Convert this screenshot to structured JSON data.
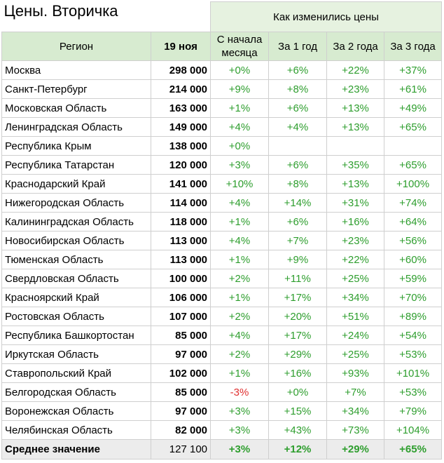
{
  "title": "Цены. Вторичка",
  "group_header": "Как изменились цены",
  "columns": {
    "region": "Регион",
    "date": "19 ноя",
    "month": "С начала месяца",
    "year1": "За 1 год",
    "year2": "За 2 года",
    "year3": "За 3 года"
  },
  "rows": [
    {
      "region": "Москва",
      "price": "298 000",
      "month": "+0%",
      "year1": "+6%",
      "year2": "+22%",
      "year3": "+37%"
    },
    {
      "region": "Санкт-Петербург",
      "price": "214 000",
      "month": "+9%",
      "year1": "+8%",
      "year2": "+23%",
      "year3": "+61%"
    },
    {
      "region": "Московская Область",
      "price": "163 000",
      "month": "+1%",
      "year1": "+6%",
      "year2": "+13%",
      "year3": "+49%"
    },
    {
      "region": "Ленинградская Область",
      "price": "149 000",
      "month": "+4%",
      "year1": "+4%",
      "year2": "+13%",
      "year3": "+65%"
    },
    {
      "region": "Республика Крым",
      "price": "138 000",
      "month": "+0%",
      "year1": "",
      "year2": "",
      "year3": ""
    },
    {
      "region": "Республика Татарстан",
      "price": "120 000",
      "month": "+3%",
      "year1": "+6%",
      "year2": "+35%",
      "year3": "+65%"
    },
    {
      "region": "Краснодарский Край",
      "price": "141 000",
      "month": "+10%",
      "year1": "+8%",
      "year2": "+13%",
      "year3": "+100%"
    },
    {
      "region": "Нижегородская Область",
      "price": "114 000",
      "month": "+4%",
      "year1": "+14%",
      "year2": "+31%",
      "year3": "+74%"
    },
    {
      "region": "Калининградская Область",
      "price": "118 000",
      "month": "+1%",
      "year1": "+6%",
      "year2": "+16%",
      "year3": "+64%"
    },
    {
      "region": "Новосибирская Область",
      "price": "113 000",
      "month": "+4%",
      "year1": "+7%",
      "year2": "+23%",
      "year3": "+56%"
    },
    {
      "region": "Тюменская Область",
      "price": "113 000",
      "month": "+1%",
      "year1": "+9%",
      "year2": "+22%",
      "year3": "+60%"
    },
    {
      "region": "Свердловская Область",
      "price": "100 000",
      "month": "+2%",
      "year1": "+11%",
      "year2": "+25%",
      "year3": "+59%"
    },
    {
      "region": "Красноярский Край",
      "price": "106 000",
      "month": "+1%",
      "year1": "+17%",
      "year2": "+34%",
      "year3": "+70%"
    },
    {
      "region": "Ростовская Область",
      "price": "107 000",
      "month": "+2%",
      "year1": "+20%",
      "year2": "+51%",
      "year3": "+89%"
    },
    {
      "region": "Республика Башкортостан",
      "price": "85 000",
      "month": "+4%",
      "year1": "+17%",
      "year2": "+24%",
      "year3": "+54%"
    },
    {
      "region": "Иркутская Область",
      "price": "97 000",
      "month": "+2%",
      "year1": "+29%",
      "year2": "+25%",
      "year3": "+53%"
    },
    {
      "region": "Ставропольский Край",
      "price": "102 000",
      "month": "+1%",
      "year1": "+16%",
      "year2": "+93%",
      "year3": "+101%"
    },
    {
      "region": "Белгородская Область",
      "price": "85 000",
      "month": "-3%",
      "year1": "+0%",
      "year2": "+7%",
      "year3": "+53%"
    },
    {
      "region": "Воронежская Область",
      "price": "97 000",
      "month": "+3%",
      "year1": "+15%",
      "year2": "+34%",
      "year3": "+79%"
    },
    {
      "region": "Челябинская Область",
      "price": "82 000",
      "month": "+3%",
      "year1": "+43%",
      "year2": "+73%",
      "year3": "+104%"
    }
  ],
  "footer": {
    "region": "Среднее значение",
    "price": "127 100",
    "month": "+3%",
    "year1": "+12%",
    "year2": "+29%",
    "year3": "+65%"
  },
  "colors": {
    "positive": "#2e9e2e",
    "negative": "#e03030",
    "header_bg": "#d7ebd0",
    "group_bg": "#e6f2e0",
    "footer_bg": "#ececec"
  }
}
